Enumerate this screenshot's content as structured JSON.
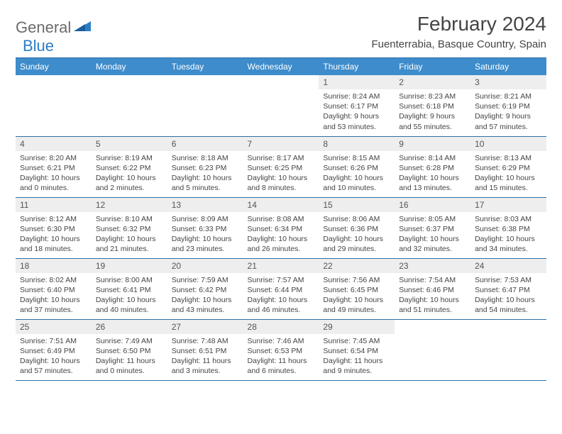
{
  "logo": {
    "part1": "General",
    "part2": "Blue"
  },
  "title": "February 2024",
  "location": "Fuenterrabia, Basque Country, Spain",
  "colors": {
    "header_bg": "#3e8ccc",
    "header_border": "#2d6fa8",
    "daynum_bg": "#eeeeee",
    "logo_gray": "#6b6b6b",
    "logo_blue": "#2d7dc4"
  },
  "weekdays": [
    "Sunday",
    "Monday",
    "Tuesday",
    "Wednesday",
    "Thursday",
    "Friday",
    "Saturday"
  ],
  "weeks": [
    [
      null,
      null,
      null,
      null,
      {
        "n": "1",
        "sr": "8:24 AM",
        "ss": "6:17 PM",
        "dl": "9 hours and 53 minutes."
      },
      {
        "n": "2",
        "sr": "8:23 AM",
        "ss": "6:18 PM",
        "dl": "9 hours and 55 minutes."
      },
      {
        "n": "3",
        "sr": "8:21 AM",
        "ss": "6:19 PM",
        "dl": "9 hours and 57 minutes."
      }
    ],
    [
      {
        "n": "4",
        "sr": "8:20 AM",
        "ss": "6:21 PM",
        "dl": "10 hours and 0 minutes."
      },
      {
        "n": "5",
        "sr": "8:19 AM",
        "ss": "6:22 PM",
        "dl": "10 hours and 2 minutes."
      },
      {
        "n": "6",
        "sr": "8:18 AM",
        "ss": "6:23 PM",
        "dl": "10 hours and 5 minutes."
      },
      {
        "n": "7",
        "sr": "8:17 AM",
        "ss": "6:25 PM",
        "dl": "10 hours and 8 minutes."
      },
      {
        "n": "8",
        "sr": "8:15 AM",
        "ss": "6:26 PM",
        "dl": "10 hours and 10 minutes."
      },
      {
        "n": "9",
        "sr": "8:14 AM",
        "ss": "6:28 PM",
        "dl": "10 hours and 13 minutes."
      },
      {
        "n": "10",
        "sr": "8:13 AM",
        "ss": "6:29 PM",
        "dl": "10 hours and 15 minutes."
      }
    ],
    [
      {
        "n": "11",
        "sr": "8:12 AM",
        "ss": "6:30 PM",
        "dl": "10 hours and 18 minutes."
      },
      {
        "n": "12",
        "sr": "8:10 AM",
        "ss": "6:32 PM",
        "dl": "10 hours and 21 minutes."
      },
      {
        "n": "13",
        "sr": "8:09 AM",
        "ss": "6:33 PM",
        "dl": "10 hours and 23 minutes."
      },
      {
        "n": "14",
        "sr": "8:08 AM",
        "ss": "6:34 PM",
        "dl": "10 hours and 26 minutes."
      },
      {
        "n": "15",
        "sr": "8:06 AM",
        "ss": "6:36 PM",
        "dl": "10 hours and 29 minutes."
      },
      {
        "n": "16",
        "sr": "8:05 AM",
        "ss": "6:37 PM",
        "dl": "10 hours and 32 minutes."
      },
      {
        "n": "17",
        "sr": "8:03 AM",
        "ss": "6:38 PM",
        "dl": "10 hours and 34 minutes."
      }
    ],
    [
      {
        "n": "18",
        "sr": "8:02 AM",
        "ss": "6:40 PM",
        "dl": "10 hours and 37 minutes."
      },
      {
        "n": "19",
        "sr": "8:00 AM",
        "ss": "6:41 PM",
        "dl": "10 hours and 40 minutes."
      },
      {
        "n": "20",
        "sr": "7:59 AM",
        "ss": "6:42 PM",
        "dl": "10 hours and 43 minutes."
      },
      {
        "n": "21",
        "sr": "7:57 AM",
        "ss": "6:44 PM",
        "dl": "10 hours and 46 minutes."
      },
      {
        "n": "22",
        "sr": "7:56 AM",
        "ss": "6:45 PM",
        "dl": "10 hours and 49 minutes."
      },
      {
        "n": "23",
        "sr": "7:54 AM",
        "ss": "6:46 PM",
        "dl": "10 hours and 51 minutes."
      },
      {
        "n": "24",
        "sr": "7:53 AM",
        "ss": "6:47 PM",
        "dl": "10 hours and 54 minutes."
      }
    ],
    [
      {
        "n": "25",
        "sr": "7:51 AM",
        "ss": "6:49 PM",
        "dl": "10 hours and 57 minutes."
      },
      {
        "n": "26",
        "sr": "7:49 AM",
        "ss": "6:50 PM",
        "dl": "11 hours and 0 minutes."
      },
      {
        "n": "27",
        "sr": "7:48 AM",
        "ss": "6:51 PM",
        "dl": "11 hours and 3 minutes."
      },
      {
        "n": "28",
        "sr": "7:46 AM",
        "ss": "6:53 PM",
        "dl": "11 hours and 6 minutes."
      },
      {
        "n": "29",
        "sr": "7:45 AM",
        "ss": "6:54 PM",
        "dl": "11 hours and 9 minutes."
      },
      null,
      null
    ]
  ],
  "labels": {
    "sunrise": "Sunrise: ",
    "sunset": "Sunset: ",
    "daylight": "Daylight: "
  }
}
